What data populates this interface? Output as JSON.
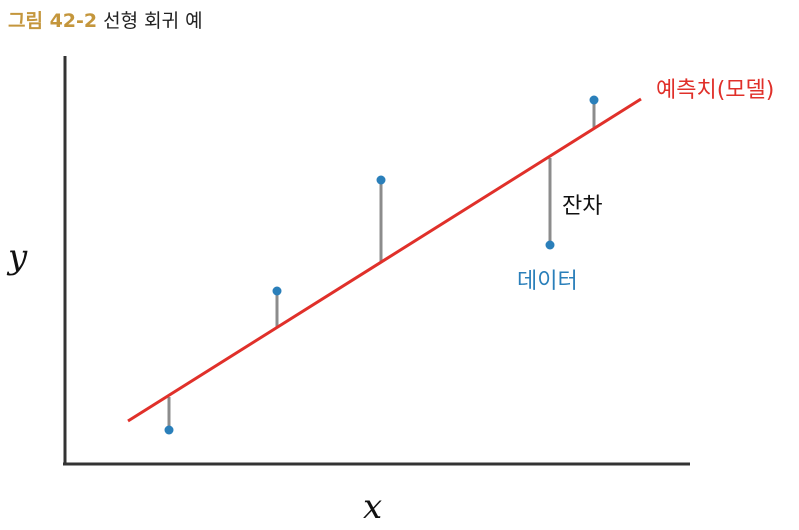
{
  "caption": {
    "figure_number": "그림 42-2",
    "title": "선형 회귀 예"
  },
  "labels": {
    "x_axis": "x",
    "y_axis": "y",
    "model_line": "예측치(모델)",
    "residual": "잔차",
    "data": "데이터"
  },
  "colors": {
    "model_line": "#e0302a",
    "data_point": "#2a7fba",
    "residual": "#8c8c8c",
    "axis": "#333333",
    "caption_number": "#c4963c"
  }
}
